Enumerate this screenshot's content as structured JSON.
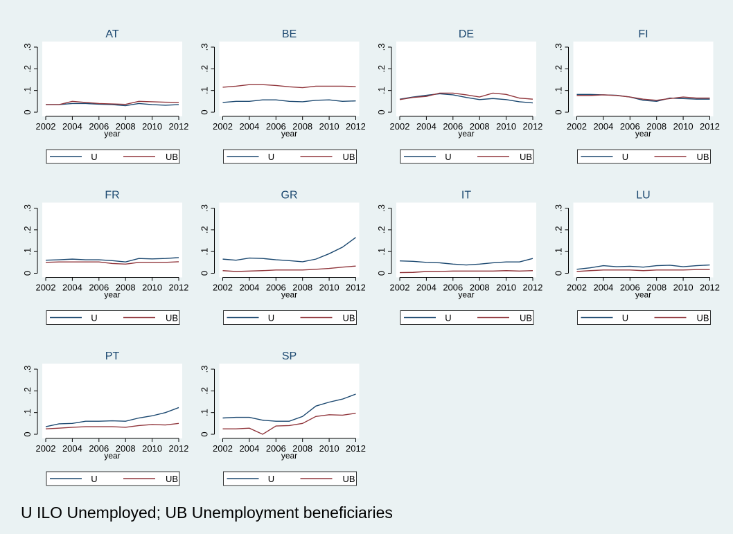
{
  "chart_data": [
    {
      "type": "line",
      "title": "AT",
      "x": [
        2002,
        2003,
        2004,
        2005,
        2006,
        2007,
        2008,
        2009,
        2010,
        2011,
        2012
      ],
      "xlabel": "year",
      "xlim": [
        2002,
        2012
      ],
      "xticks": [
        2002,
        2004,
        2006,
        2008,
        2010,
        2012
      ],
      "ylim": [
        0,
        0.3
      ],
      "yticks": [
        0,
        {
          "value": 0.1,
          "label": ".1"
        },
        {
          "value": 0.2,
          "label": ".2"
        },
        {
          "value": 0.3,
          "label": ".3"
        }
      ],
      "series": [
        {
          "name": "U",
          "color": "#1a476f",
          "values": [
            0.035,
            0.035,
            0.04,
            0.04,
            0.037,
            0.035,
            0.03,
            0.04,
            0.035,
            0.032,
            0.035
          ]
        },
        {
          "name": "UB",
          "color": "#90353b",
          "values": [
            0.035,
            0.035,
            0.05,
            0.045,
            0.04,
            0.038,
            0.036,
            0.05,
            0.048,
            0.046,
            0.045
          ]
        }
      ]
    },
    {
      "type": "line",
      "title": "BE",
      "x": [
        2002,
        2003,
        2004,
        2005,
        2006,
        2007,
        2008,
        2009,
        2010,
        2011,
        2012
      ],
      "xlabel": "year",
      "xlim": [
        2002,
        2012
      ],
      "xticks": [
        2002,
        2004,
        2006,
        2008,
        2010,
        2012
      ],
      "ylim": [
        0,
        0.3
      ],
      "yticks": [
        0,
        {
          "value": 0.1,
          "label": ".1"
        },
        {
          "value": 0.2,
          "label": ".2"
        },
        {
          "value": 0.3,
          "label": ".3"
        }
      ],
      "series": [
        {
          "name": "U",
          "color": "#1a476f",
          "values": [
            0.045,
            0.05,
            0.05,
            0.057,
            0.057,
            0.05,
            0.048,
            0.055,
            0.057,
            0.05,
            0.052
          ]
        },
        {
          "name": "UB",
          "color": "#90353b",
          "values": [
            0.115,
            0.12,
            0.127,
            0.127,
            0.123,
            0.117,
            0.113,
            0.12,
            0.12,
            0.12,
            0.118
          ]
        }
      ]
    },
    {
      "type": "line",
      "title": "DE",
      "x": [
        2002,
        2003,
        2004,
        2005,
        2006,
        2007,
        2008,
        2009,
        2010,
        2011,
        2012
      ],
      "xlabel": "year",
      "xlim": [
        2002,
        2012
      ],
      "xticks": [
        2002,
        2004,
        2006,
        2008,
        2010,
        2012
      ],
      "ylim": [
        0,
        0.3
      ],
      "yticks": [
        0,
        {
          "value": 0.1,
          "label": ".1"
        },
        {
          "value": 0.2,
          "label": ".2"
        },
        {
          "value": 0.3,
          "label": ".3"
        }
      ],
      "series": [
        {
          "name": "U",
          "color": "#1a476f",
          "values": [
            0.06,
            0.07,
            0.078,
            0.085,
            0.08,
            0.068,
            0.058,
            0.063,
            0.058,
            0.048,
            0.043
          ]
        },
        {
          "name": "UB",
          "color": "#90353b",
          "values": [
            0.058,
            0.068,
            0.073,
            0.088,
            0.088,
            0.08,
            0.07,
            0.088,
            0.082,
            0.065,
            0.06
          ]
        }
      ]
    },
    {
      "type": "line",
      "title": "FI",
      "x": [
        2002,
        2003,
        2004,
        2005,
        2006,
        2007,
        2008,
        2009,
        2010,
        2011,
        2012
      ],
      "xlabel": "year",
      "xlim": [
        2002,
        2012
      ],
      "xticks": [
        2002,
        2004,
        2006,
        2008,
        2010,
        2012
      ],
      "ylim": [
        0,
        0.3
      ],
      "yticks": [
        0,
        {
          "value": 0.1,
          "label": ".1"
        },
        {
          "value": 0.2,
          "label": ".2"
        },
        {
          "value": 0.3,
          "label": ".3"
        }
      ],
      "series": [
        {
          "name": "U",
          "color": "#1a476f",
          "values": [
            0.082,
            0.082,
            0.08,
            0.078,
            0.07,
            0.055,
            0.05,
            0.065,
            0.063,
            0.06,
            0.06
          ]
        },
        {
          "name": "UB",
          "color": "#90353b",
          "values": [
            0.077,
            0.077,
            0.08,
            0.077,
            0.07,
            0.06,
            0.055,
            0.063,
            0.07,
            0.065,
            0.065
          ]
        }
      ]
    },
    {
      "type": "line",
      "title": "FR",
      "x": [
        2002,
        2003,
        2004,
        2005,
        2006,
        2007,
        2008,
        2009,
        2010,
        2011,
        2012
      ],
      "xlabel": "year",
      "xlim": [
        2002,
        2012
      ],
      "xticks": [
        2002,
        2004,
        2006,
        2008,
        2010,
        2012
      ],
      "ylim": [
        0,
        0.3
      ],
      "yticks": [
        0,
        {
          "value": 0.1,
          "label": ".1"
        },
        {
          "value": 0.2,
          "label": ".2"
        },
        {
          "value": 0.3,
          "label": ".3"
        }
      ],
      "series": [
        {
          "name": "U",
          "color": "#1a476f",
          "values": [
            0.06,
            0.062,
            0.065,
            0.062,
            0.062,
            0.058,
            0.052,
            0.068,
            0.066,
            0.068,
            0.072
          ]
        },
        {
          "name": "UB",
          "color": "#90353b",
          "values": [
            0.05,
            0.052,
            0.052,
            0.052,
            0.052,
            0.045,
            0.042,
            0.05,
            0.05,
            0.05,
            0.053
          ]
        }
      ]
    },
    {
      "type": "line",
      "title": "GR",
      "x": [
        2002,
        2003,
        2004,
        2005,
        2006,
        2007,
        2008,
        2009,
        2010,
        2011,
        2012
      ],
      "xlabel": "year",
      "xlim": [
        2002,
        2012
      ],
      "xticks": [
        2002,
        2004,
        2006,
        2008,
        2010,
        2012
      ],
      "ylim": [
        0,
        0.3
      ],
      "yticks": [
        0,
        {
          "value": 0.1,
          "label": ".1"
        },
        {
          "value": 0.2,
          "label": ".2"
        },
        {
          "value": 0.3,
          "label": ".3"
        }
      ],
      "series": [
        {
          "name": "U",
          "color": "#1a476f",
          "values": [
            0.065,
            0.06,
            0.07,
            0.068,
            0.062,
            0.058,
            0.053,
            0.065,
            0.09,
            0.12,
            0.165
          ]
        },
        {
          "name": "UB",
          "color": "#90353b",
          "values": [
            0.012,
            0.008,
            0.01,
            0.012,
            0.015,
            0.015,
            0.015,
            0.018,
            0.022,
            0.028,
            0.033
          ]
        }
      ]
    },
    {
      "type": "line",
      "title": "IT",
      "x": [
        2002,
        2003,
        2004,
        2005,
        2006,
        2007,
        2008,
        2009,
        2010,
        2011,
        2012
      ],
      "xlabel": "year",
      "xlim": [
        2002,
        2012
      ],
      "xticks": [
        2002,
        2004,
        2006,
        2008,
        2010,
        2012
      ],
      "ylim": [
        0,
        0.3
      ],
      "yticks": [
        0,
        {
          "value": 0.1,
          "label": ".1"
        },
        {
          "value": 0.2,
          "label": ".2"
        },
        {
          "value": 0.3,
          "label": ".3"
        }
      ],
      "series": [
        {
          "name": "U",
          "color": "#1a476f",
          "values": [
            0.057,
            0.055,
            0.05,
            0.048,
            0.042,
            0.038,
            0.042,
            0.048,
            0.052,
            0.052,
            0.068
          ]
        },
        {
          "name": "UB",
          "color": "#90353b",
          "values": [
            0.003,
            0.004,
            0.008,
            0.008,
            0.01,
            0.01,
            0.01,
            0.01,
            0.012,
            0.01,
            0.012
          ]
        }
      ]
    },
    {
      "type": "line",
      "title": "LU",
      "x": [
        2002,
        2003,
        2004,
        2005,
        2006,
        2007,
        2008,
        2009,
        2010,
        2011,
        2012
      ],
      "xlabel": "year",
      "xlim": [
        2002,
        2012
      ],
      "xticks": [
        2002,
        2004,
        2006,
        2008,
        2010,
        2012
      ],
      "ylim": [
        0,
        0.3
      ],
      "yticks": [
        0,
        {
          "value": 0.1,
          "label": ".1"
        },
        {
          "value": 0.2,
          "label": ".2"
        },
        {
          "value": 0.3,
          "label": ".3"
        }
      ],
      "series": [
        {
          "name": "U",
          "color": "#1a476f",
          "values": [
            0.018,
            0.025,
            0.035,
            0.03,
            0.032,
            0.028,
            0.035,
            0.037,
            0.03,
            0.035,
            0.038
          ]
        },
        {
          "name": "UB",
          "color": "#90353b",
          "values": [
            0.008,
            0.012,
            0.015,
            0.015,
            0.015,
            0.012,
            0.015,
            0.015,
            0.015,
            0.017,
            0.017
          ]
        }
      ]
    },
    {
      "type": "line",
      "title": "PT",
      "x": [
        2002,
        2003,
        2004,
        2005,
        2006,
        2007,
        2008,
        2009,
        2010,
        2011,
        2012
      ],
      "xlabel": "year",
      "xlim": [
        2002,
        2012
      ],
      "xticks": [
        2002,
        2004,
        2006,
        2008,
        2010,
        2012
      ],
      "ylim": [
        0,
        0.3
      ],
      "yticks": [
        0,
        {
          "value": 0.1,
          "label": ".1"
        },
        {
          "value": 0.2,
          "label": ".2"
        },
        {
          "value": 0.3,
          "label": ".3"
        }
      ],
      "series": [
        {
          "name": "U",
          "color": "#1a476f",
          "values": [
            0.035,
            0.048,
            0.05,
            0.06,
            0.06,
            0.062,
            0.06,
            0.075,
            0.085,
            0.1,
            0.123
          ]
        },
        {
          "name": "UB",
          "color": "#90353b",
          "values": [
            0.025,
            0.028,
            0.032,
            0.035,
            0.035,
            0.035,
            0.032,
            0.04,
            0.045,
            0.043,
            0.05
          ]
        }
      ]
    },
    {
      "type": "line",
      "title": "SP",
      "x": [
        2002,
        2003,
        2004,
        2005,
        2006,
        2007,
        2008,
        2009,
        2010,
        2011,
        2012
      ],
      "xlabel": "year",
      "xlim": [
        2002,
        2012
      ],
      "xticks": [
        2002,
        2004,
        2006,
        2008,
        2010,
        2012
      ],
      "ylim": [
        0,
        0.3
      ],
      "yticks": [
        0,
        {
          "value": 0.1,
          "label": ".1"
        },
        {
          "value": 0.2,
          "label": ".2"
        },
        {
          "value": 0.3,
          "label": ".3"
        }
      ],
      "series": [
        {
          "name": "U",
          "color": "#1a476f",
          "values": [
            0.075,
            0.078,
            0.078,
            0.065,
            0.06,
            0.06,
            0.082,
            0.13,
            0.148,
            0.162,
            0.185
          ]
        },
        {
          "name": "UB",
          "color": "#90353b",
          "values": [
            0.025,
            0.025,
            0.028,
            0.0,
            0.038,
            0.04,
            0.05,
            0.082,
            0.09,
            0.088,
            0.097
          ]
        }
      ]
    }
  ],
  "note": "U ILO Unemployed; UB Unemployment beneficiaries"
}
